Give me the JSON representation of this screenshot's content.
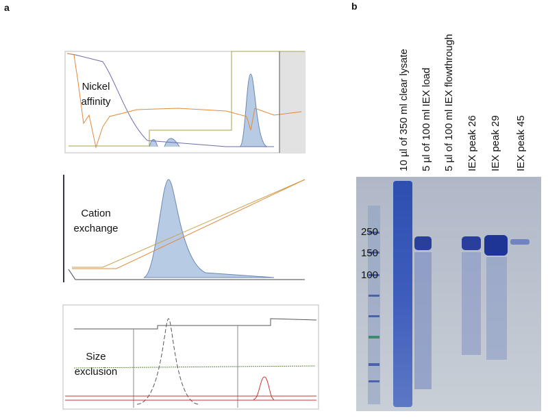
{
  "panel_a": {
    "label": "a",
    "rows": [
      {
        "title_lines": [
          "Nickel",
          "affinity"
        ]
      },
      {
        "title_lines": [
          "Cation",
          "exchange"
        ]
      },
      {
        "title_lines": [
          "Size",
          "exclusion"
        ]
      }
    ]
  },
  "panel_b": {
    "label": "b",
    "lanes": [
      "10 µl of 350 ml clear lysate",
      "5 µl of 100 ml IEX load",
      "5 µl of 100 ml IEX flowthrough",
      "IEX peak 26",
      "IEX peak 29",
      "IEX peak 45"
    ],
    "markers": [
      250,
      150,
      100
    ]
  }
}
